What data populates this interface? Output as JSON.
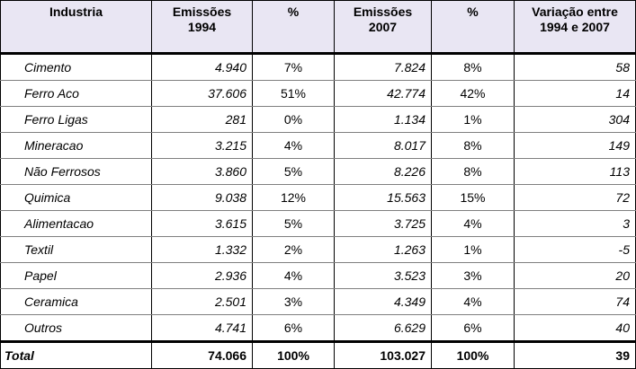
{
  "table": {
    "headers": [
      [
        "Industria",
        ""
      ],
      [
        "Emissões",
        "1994"
      ],
      [
        "%",
        ""
      ],
      [
        "Emissões",
        "2007"
      ],
      [
        "%",
        ""
      ],
      [
        "Variação entre",
        "1994 e 2007"
      ]
    ],
    "rows": [
      [
        "Cimento",
        "4.940",
        "7%",
        "7.824",
        "8%",
        "58"
      ],
      [
        "Ferro Aco",
        "37.606",
        "51%",
        "42.774",
        "42%",
        "14"
      ],
      [
        "Ferro Ligas",
        "281",
        "0%",
        "1.134",
        "1%",
        "304"
      ],
      [
        "Mineracao",
        "3.215",
        "4%",
        "8.017",
        "8%",
        "149"
      ],
      [
        "Não Ferrosos",
        "3.860",
        "5%",
        "8.226",
        "8%",
        "113"
      ],
      [
        "Quimica",
        "9.038",
        "12%",
        "15.563",
        "15%",
        "72"
      ],
      [
        "Alimentacao",
        "3.615",
        "5%",
        "3.725",
        "4%",
        "3"
      ],
      [
        "Textil",
        "1.332",
        "2%",
        "1.263",
        "1%",
        "-5"
      ],
      [
        "Papel",
        "2.936",
        "4%",
        "3.523",
        "3%",
        "20"
      ],
      [
        "Ceramica",
        "2.501",
        "3%",
        "4.349",
        "4%",
        "74"
      ],
      [
        "Outros",
        "4.741",
        "6%",
        "6.629",
        "6%",
        "40"
      ]
    ],
    "total": [
      "Total",
      "74.066",
      "100%",
      "103.027",
      "100%",
      "39"
    ]
  },
  "colors": {
    "header_bg": "#e9e6f3",
    "border": "#000000",
    "row_divider": "#7f7f7f"
  }
}
